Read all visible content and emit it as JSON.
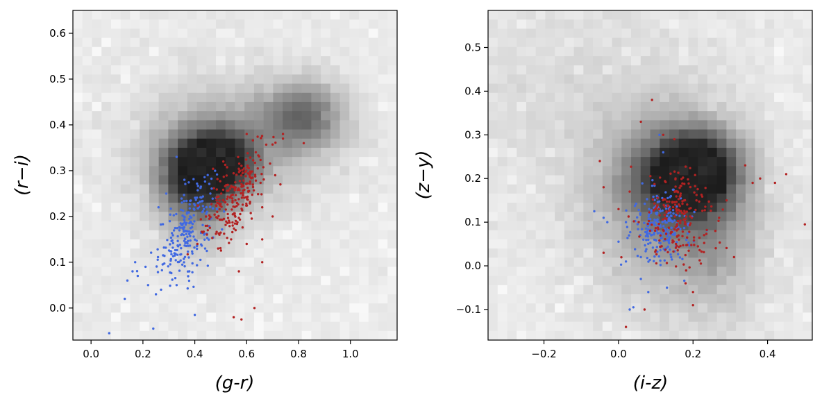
{
  "colors": {
    "blue_points": "#4169e1",
    "red_points": "#b22222",
    "density_dark": "#1a1a1a",
    "density_light": "#f7f7f7"
  },
  "chart_data": [
    {
      "type": "scatter",
      "background": "2d-histogram density, greyscale",
      "xlabel": "(g-r)",
      "ylabel": "(r−i)",
      "xlim": [
        -0.07,
        1.18
      ],
      "ylim": [
        -0.07,
        0.65
      ],
      "xticks": [
        0.0,
        0.2,
        0.4,
        0.6,
        0.8,
        1.0
      ],
      "xtick_labels": [
        "0.0",
        "0.2",
        "0.4",
        "0.6",
        "0.8",
        "1.0"
      ],
      "yticks": [
        0.0,
        0.1,
        0.2,
        0.3,
        0.4,
        0.5,
        0.6
      ],
      "ytick_labels": [
        "0.0",
        "0.1",
        "0.2",
        "0.3",
        "0.4",
        "0.5",
        "0.6"
      ],
      "density_peaks": [
        {
          "x": 0.4,
          "y": 0.3,
          "sx": 0.1,
          "sy": 0.06,
          "w": 1.0
        },
        {
          "x": 0.52,
          "y": 0.32,
          "sx": 0.09,
          "sy": 0.05,
          "w": 0.75
        },
        {
          "x": 0.82,
          "y": 0.42,
          "sx": 0.11,
          "sy": 0.05,
          "w": 0.65
        },
        {
          "x": 0.55,
          "y": 0.36,
          "sx": 0.24,
          "sy": 0.1,
          "w": 0.35
        },
        {
          "x": 0.4,
          "y": 0.2,
          "sx": 0.1,
          "sy": 0.07,
          "w": 0.3
        }
      ],
      "series": [
        {
          "color": "#4169e1",
          "cluster": {
            "center": [
              0.37,
              0.17
            ],
            "sx": 0.055,
            "sy": 0.045,
            "n": 230
          },
          "points": [
            [
              0.07,
              -0.055
            ],
            [
              0.13,
              0.02
            ],
            [
              0.24,
              -0.045
            ],
            [
              0.4,
              -0.015
            ],
            [
              0.14,
              0.06
            ],
            [
              0.17,
              0.1
            ],
            [
              0.16,
              0.08
            ],
            [
              0.18,
              0.07
            ],
            [
              0.22,
              0.05
            ],
            [
              0.27,
              0.04
            ],
            [
              0.25,
              0.03
            ],
            [
              0.21,
              0.09
            ],
            [
              0.33,
              0.05
            ],
            [
              0.44,
              0.13
            ],
            [
              0.29,
              0.25
            ],
            [
              0.33,
              0.33
            ],
            [
              0.36,
              0.28
            ],
            [
              0.26,
              0.22
            ],
            [
              0.46,
              0.25
            ]
          ]
        },
        {
          "color": "#b22222",
          "cluster": {
            "center": [
              0.57,
              0.25
            ],
            "sx": 0.06,
            "sy": 0.04,
            "n": 230
          },
          "points": [
            [
              0.55,
              -0.02
            ],
            [
              0.58,
              -0.025
            ],
            [
              0.63,
              0.0
            ],
            [
              0.57,
              0.08
            ],
            [
              0.66,
              0.1
            ],
            [
              0.74,
              0.38
            ],
            [
              0.74,
              0.37
            ],
            [
              0.82,
              0.36
            ],
            [
              0.71,
              0.29
            ],
            [
              0.7,
              0.2
            ],
            [
              0.66,
              0.15
            ],
            [
              0.6,
              0.14
            ],
            [
              0.54,
              0.15
            ],
            [
              0.49,
              0.13
            ],
            [
              0.6,
              0.38
            ],
            [
              0.51,
              0.32
            ],
            [
              0.41,
              0.14
            ],
            [
              0.45,
              0.17
            ],
            [
              0.73,
              0.27
            ],
            [
              0.66,
              0.22
            ]
          ]
        }
      ]
    },
    {
      "type": "scatter",
      "background": "2d-histogram density, greyscale",
      "xlabel": "(i-z)",
      "ylabel": "(z−y)",
      "xlim": [
        -0.35,
        0.52
      ],
      "ylim": [
        -0.17,
        0.585
      ],
      "xticks": [
        -0.2,
        0.0,
        0.2,
        0.4
      ],
      "xtick_labels": [
        "−0.2",
        "0.0",
        "0.2",
        "0.4"
      ],
      "yticks": [
        -0.1,
        0.0,
        0.1,
        0.2,
        0.3,
        0.4,
        0.5
      ],
      "ytick_labels": [
        "−0.1",
        "0.0",
        "0.1",
        "0.2",
        "0.3",
        "0.4",
        "0.5"
      ],
      "density_peaks": [
        {
          "x": 0.23,
          "y": 0.22,
          "sx": 0.07,
          "sy": 0.06,
          "w": 1.0
        },
        {
          "x": 0.14,
          "y": 0.2,
          "sx": 0.09,
          "sy": 0.08,
          "w": 0.75
        },
        {
          "x": 0.15,
          "y": 0.12,
          "sx": 0.15,
          "sy": 0.16,
          "w": 0.4
        },
        {
          "x": 0.27,
          "y": 0.03,
          "sx": 0.07,
          "sy": 0.1,
          "w": 0.2
        },
        {
          "x": -0.15,
          "y": 0.4,
          "sx": 0.25,
          "sy": 0.18,
          "w": 0.1
        }
      ],
      "series": [
        {
          "color": "#4169e1",
          "cluster": {
            "center": [
              0.11,
              0.09
            ],
            "sx": 0.035,
            "sy": 0.04,
            "n": 220
          },
          "points": [
            [
              -0.065,
              0.125
            ],
            [
              -0.04,
              0.11
            ],
            [
              0.03,
              -0.1
            ],
            [
              0.04,
              -0.095
            ],
            [
              0.02,
              0.1
            ],
            [
              -0.03,
              0.1
            ],
            [
              0.06,
              0.02
            ],
            [
              0.12,
              0.26
            ],
            [
              0.11,
              0.3
            ],
            [
              0.08,
              -0.06
            ],
            [
              0.06,
              -0.03
            ],
            [
              0.13,
              -0.05
            ],
            [
              0.02,
              0.01
            ]
          ]
        },
        {
          "color": "#b22222",
          "cluster": {
            "center": [
              0.15,
              0.11
            ],
            "sx": 0.05,
            "sy": 0.05,
            "n": 210
          },
          "points": [
            [
              0.09,
              0.38
            ],
            [
              0.06,
              0.33
            ],
            [
              0.12,
              0.3
            ],
            [
              0.15,
              0.29
            ],
            [
              0.34,
              0.23
            ],
            [
              0.38,
              0.2
            ],
            [
              0.42,
              0.19
            ],
            [
              0.45,
              0.21
            ],
            [
              0.5,
              0.095
            ],
            [
              0.26,
              0.08
            ],
            [
              0.31,
              0.02
            ],
            [
              0.27,
              0.11
            ],
            [
              0.2,
              -0.09
            ],
            [
              0.2,
              -0.06
            ],
            [
              0.02,
              -0.14
            ],
            [
              0.07,
              -0.1
            ],
            [
              -0.04,
              0.18
            ],
            [
              -0.05,
              0.24
            ],
            [
              0.0,
              0.13
            ],
            [
              -0.04,
              0.03
            ],
            [
              0.18,
              -0.04
            ],
            [
              0.36,
              0.19
            ],
            [
              0.03,
              0.17
            ],
            [
              0.29,
              0.15
            ]
          ]
        }
      ]
    }
  ]
}
